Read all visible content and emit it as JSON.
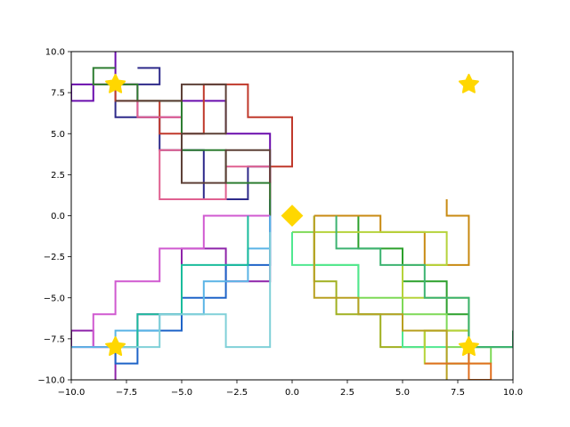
{
  "chart_data": {
    "type": "line",
    "title": "",
    "xlabel": "",
    "ylabel": "",
    "xlim": [
      -10,
      10
    ],
    "ylim": [
      -10,
      10
    ],
    "grid": false,
    "x_ticks": [
      -10,
      -7.5,
      -5,
      -2.5,
      0,
      2.5,
      5,
      7.5,
      10
    ],
    "y_ticks": [
      -10,
      -7.5,
      -5,
      -2.5,
      0,
      2.5,
      5,
      7.5,
      10
    ],
    "x_tick_labels": [
      "−10.0",
      "−7.5",
      "−5.0",
      "−2.5",
      "0.0",
      "2.5",
      "5.0",
      "7.5",
      "10.0"
    ],
    "y_tick_labels": [
      "−10.0",
      "−7.5",
      "−5.0",
      "−2.5",
      "0.0",
      "2.5",
      "5.0",
      "7.5",
      "10.0"
    ],
    "series": [
      {
        "name": "purple-walk",
        "color": "#6a0dad",
        "points": [
          [
            -1,
            0
          ],
          [
            -1,
            5
          ],
          [
            -3,
            5
          ],
          [
            -3,
            7
          ],
          [
            -5,
            7
          ],
          [
            -5,
            6
          ],
          [
            -7,
            6
          ],
          [
            -7,
            8
          ],
          [
            -9,
            8
          ],
          [
            -9,
            7
          ],
          [
            -10,
            7
          ],
          [
            -10,
            8
          ],
          [
            -8,
            8
          ],
          [
            -8,
            10
          ]
        ]
      },
      {
        "name": "navy-walk",
        "color": "#2e2a8a",
        "points": [
          [
            -1,
            0
          ],
          [
            -1,
            3
          ],
          [
            -2,
            3
          ],
          [
            -2,
            1
          ],
          [
            -4,
            1
          ],
          [
            -4,
            4
          ],
          [
            -6,
            4
          ],
          [
            -6,
            6
          ],
          [
            -8,
            6
          ],
          [
            -8,
            8
          ],
          [
            -6,
            8
          ],
          [
            -6,
            9
          ],
          [
            -7,
            9
          ]
        ]
      },
      {
        "name": "red-walk",
        "color": "#c0392b",
        "points": [
          [
            -1,
            1
          ],
          [
            -1,
            3
          ],
          [
            0,
            3
          ],
          [
            0,
            6
          ],
          [
            -2,
            6
          ],
          [
            -2,
            8
          ],
          [
            -4,
            8
          ],
          [
            -4,
            5
          ],
          [
            -6,
            5
          ],
          [
            -6,
            7
          ],
          [
            -8,
            7
          ],
          [
            -8,
            8
          ]
        ]
      },
      {
        "name": "pink-walk",
        "color": "#e06090",
        "points": [
          [
            -1,
            1
          ],
          [
            -1,
            3
          ],
          [
            -3,
            3
          ],
          [
            -3,
            1
          ],
          [
            -6,
            1
          ],
          [
            -6,
            4
          ],
          [
            -5,
            4
          ],
          [
            -5,
            6
          ],
          [
            -7,
            6
          ],
          [
            -7,
            8
          ],
          [
            -9,
            8
          ]
        ]
      },
      {
        "name": "darkgreen-walk",
        "color": "#2e7d32",
        "points": [
          [
            -1,
            0
          ],
          [
            -1,
            2
          ],
          [
            -3,
            2
          ],
          [
            -3,
            4
          ],
          [
            -5,
            4
          ],
          [
            -5,
            7
          ],
          [
            -7,
            7
          ],
          [
            -7,
            8
          ],
          [
            -9,
            8
          ],
          [
            -9,
            9
          ],
          [
            -8,
            9
          ]
        ]
      },
      {
        "name": "brown-walk",
        "color": "#5d4037",
        "points": [
          [
            -1,
            2
          ],
          [
            -1,
            4
          ],
          [
            -3,
            4
          ],
          [
            -3,
            2
          ],
          [
            -5,
            2
          ],
          [
            -5,
            5
          ],
          [
            -3,
            5
          ],
          [
            -3,
            8
          ],
          [
            -5,
            8
          ],
          [
            -5,
            7
          ],
          [
            -8,
            7
          ]
        ]
      },
      {
        "name": "violet-walk",
        "color": "#8e24aa",
        "points": [
          [
            -1,
            0
          ],
          [
            -1,
            -4
          ],
          [
            -3,
            -4
          ],
          [
            -3,
            -2
          ],
          [
            -5,
            -2
          ],
          [
            -5,
            -6
          ],
          [
            -7,
            -6
          ],
          [
            -7,
            -8
          ],
          [
            -9,
            -8
          ],
          [
            -9,
            -7
          ],
          [
            -10,
            -7
          ],
          [
            -10,
            -8
          ],
          [
            -8,
            -8
          ],
          [
            -8,
            -10
          ]
        ]
      },
      {
        "name": "blue-walk",
        "color": "#1e64c8",
        "points": [
          [
            -1,
            0
          ],
          [
            -1,
            -3
          ],
          [
            -3,
            -3
          ],
          [
            -3,
            -5
          ],
          [
            -5,
            -5
          ],
          [
            -5,
            -7
          ],
          [
            -7,
            -7
          ],
          [
            -7,
            -9
          ],
          [
            -8,
            -9
          ],
          [
            -8,
            -8
          ]
        ]
      },
      {
        "name": "orchid-walk",
        "color": "#d05ad0",
        "points": [
          [
            -1,
            0
          ],
          [
            -4,
            0
          ],
          [
            -4,
            -2
          ],
          [
            -6,
            -2
          ],
          [
            -6,
            -4
          ],
          [
            -8,
            -4
          ],
          [
            -8,
            -6
          ],
          [
            -9,
            -6
          ],
          [
            -9,
            -8
          ],
          [
            -8,
            -8
          ]
        ]
      },
      {
        "name": "skyblue-walk",
        "color": "#5ab4e6",
        "points": [
          [
            -1,
            0
          ],
          [
            -1,
            -2
          ],
          [
            -2,
            -2
          ],
          [
            -2,
            -4
          ],
          [
            -4,
            -4
          ],
          [
            -4,
            -6
          ],
          [
            -6,
            -6
          ],
          [
            -6,
            -7
          ],
          [
            -8,
            -7
          ],
          [
            -8,
            -8
          ],
          [
            -10,
            -8
          ]
        ]
      },
      {
        "name": "teal-walk",
        "color": "#1abc9c",
        "points": [
          [
            -2,
            0
          ],
          [
            -2,
            -3
          ],
          [
            -5,
            -3
          ],
          [
            -5,
            -6
          ],
          [
            -7,
            -6
          ],
          [
            -7,
            -8
          ],
          [
            -8,
            -8
          ]
        ]
      },
      {
        "name": "lightcyan-walk",
        "color": "#80d0d8",
        "points": [
          [
            -1,
            -1
          ],
          [
            -1,
            -8
          ],
          [
            -3,
            -8
          ],
          [
            -3,
            -6
          ],
          [
            -6,
            -6
          ],
          [
            -6,
            -8
          ],
          [
            -8,
            -8
          ]
        ]
      },
      {
        "name": "green-walk",
        "color": "#2ca02c",
        "points": [
          [
            1,
            0
          ],
          [
            3,
            0
          ],
          [
            3,
            -2
          ],
          [
            5,
            -2
          ],
          [
            5,
            -4
          ],
          [
            7,
            -4
          ],
          [
            7,
            -6
          ],
          [
            8,
            -6
          ],
          [
            8,
            -8
          ],
          [
            10,
            -8
          ]
        ]
      },
      {
        "name": "lime-walk",
        "color": "#7ed957",
        "points": [
          [
            0,
            -1
          ],
          [
            1,
            -1
          ],
          [
            1,
            -3
          ],
          [
            3,
            -3
          ],
          [
            3,
            -5
          ],
          [
            5,
            -5
          ],
          [
            5,
            -6
          ],
          [
            7,
            -6
          ],
          [
            7,
            -8
          ],
          [
            9,
            -8
          ],
          [
            9,
            -9
          ]
        ]
      },
      {
        "name": "olive-walk",
        "color": "#a0b020",
        "points": [
          [
            1,
            0
          ],
          [
            1,
            -4
          ],
          [
            2,
            -4
          ],
          [
            2,
            -6
          ],
          [
            4,
            -6
          ],
          [
            4,
            -8
          ],
          [
            6,
            -8
          ],
          [
            6,
            -7
          ],
          [
            8,
            -7
          ],
          [
            8,
            -9
          ],
          [
            7,
            -9
          ]
        ]
      },
      {
        "name": "orange-walk",
        "color": "#c88a12",
        "points": [
          [
            1,
            0
          ],
          [
            4,
            0
          ],
          [
            4,
            -1
          ],
          [
            6,
            -1
          ],
          [
            6,
            -3
          ],
          [
            8,
            -3
          ],
          [
            8,
            0
          ],
          [
            7,
            0
          ],
          [
            7,
            1
          ]
        ]
      },
      {
        "name": "mint-walk",
        "color": "#50e890",
        "points": [
          [
            0,
            -1
          ],
          [
            0,
            -3
          ],
          [
            3,
            -3
          ],
          [
            3,
            -6
          ],
          [
            5,
            -6
          ],
          [
            5,
            -8
          ],
          [
            7,
            -8
          ],
          [
            7,
            -9
          ],
          [
            8,
            -9
          ]
        ]
      },
      {
        "name": "yellowgreen-walk",
        "color": "#b5d33a",
        "points": [
          [
            1,
            -1
          ],
          [
            7,
            -1
          ],
          [
            7,
            -3
          ],
          [
            5,
            -3
          ],
          [
            5,
            -5
          ],
          [
            8,
            -5
          ],
          [
            8,
            -7
          ],
          [
            6,
            -7
          ],
          [
            6,
            -9
          ],
          [
            9,
            -9
          ]
        ]
      },
      {
        "name": "goldenrod-walk",
        "color": "#b8a020",
        "points": [
          [
            1,
            0
          ],
          [
            1,
            -5
          ],
          [
            3,
            -5
          ],
          [
            3,
            -6
          ],
          [
            5,
            -6
          ],
          [
            5,
            -7
          ],
          [
            7,
            -7
          ],
          [
            7,
            -10
          ]
        ]
      },
      {
        "name": "seagreen-walk",
        "color": "#3cb371",
        "points": [
          [
            2,
            0
          ],
          [
            2,
            -2
          ],
          [
            4,
            -2
          ],
          [
            4,
            -3
          ],
          [
            6,
            -3
          ],
          [
            6,
            -5
          ],
          [
            8,
            -5
          ],
          [
            8,
            -8
          ],
          [
            10,
            -8
          ],
          [
            10,
            -7
          ]
        ]
      },
      {
        "name": "darkorange-walk",
        "color": "#e07020",
        "points": [
          [
            6,
            -9
          ],
          [
            9,
            -9
          ],
          [
            9,
            -10
          ],
          [
            8,
            -10
          ],
          [
            8,
            -8
          ]
        ]
      }
    ],
    "markers": [
      {
        "name": "origin-diamond",
        "shape": "diamond",
        "x": 0,
        "y": 0,
        "color": "#ffd700"
      },
      {
        "name": "goal-star-top-left",
        "shape": "star",
        "x": -8,
        "y": 8,
        "color": "#ffd700"
      },
      {
        "name": "goal-star-top-right",
        "shape": "star",
        "x": 8,
        "y": 8,
        "color": "#ffd700"
      },
      {
        "name": "goal-star-bottom-left",
        "shape": "star",
        "x": -8,
        "y": -8,
        "color": "#ffd700"
      },
      {
        "name": "goal-star-bottom-right",
        "shape": "star",
        "x": 8,
        "y": -8,
        "color": "#ffd700"
      }
    ]
  }
}
